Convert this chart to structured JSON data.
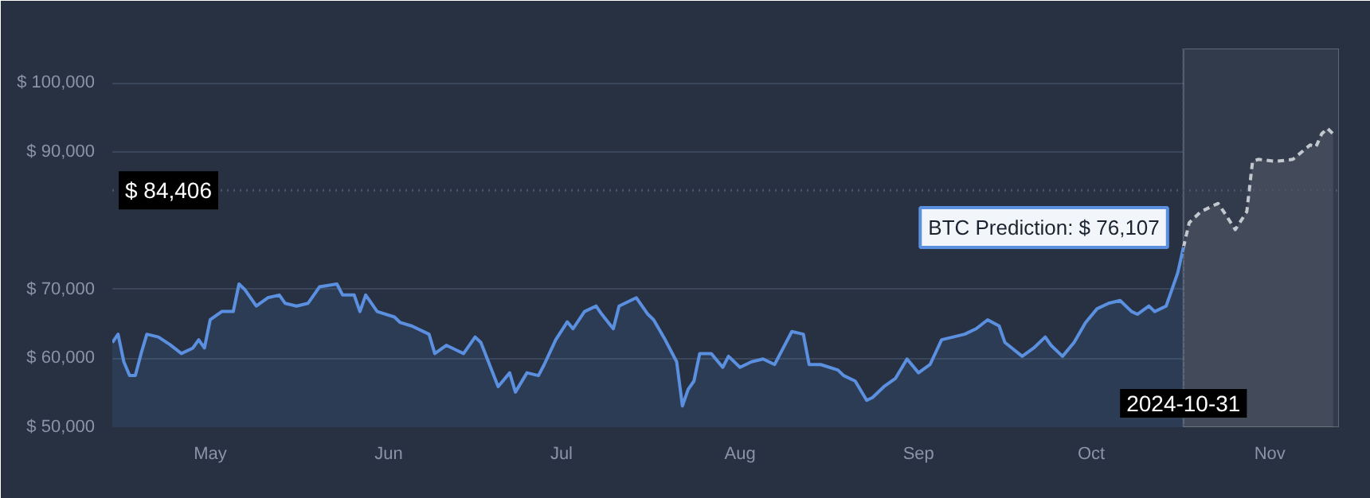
{
  "chart_data": {
    "type": "area",
    "grid": "y",
    "series": [
      {
        "color": "#5b8fe0",
        "x": [
          "2024-04-28",
          "2024-04-29",
          "2024-04-30",
          "2024-05-01",
          "2024-05-02",
          "2024-05-03",
          "2024-05-04",
          "2024-05-06",
          "2024-05-08",
          "2024-05-10",
          "2024-05-12",
          "2024-05-13",
          "2024-05-14",
          "2024-05-15",
          "2024-05-17",
          "2024-05-19",
          "2024-05-20",
          "2024-05-21",
          "2024-05-23",
          "2024-05-25",
          "2024-05-27",
          "2024-05-28",
          "2024-05-30",
          "2024-06-01",
          "2024-06-03",
          "2024-06-06",
          "2024-06-07",
          "2024-06-09",
          "2024-06-10",
          "2024-06-11",
          "2024-06-13",
          "2024-06-16",
          "2024-06-17",
          "2024-06-19",
          "2024-06-22",
          "2024-06-23",
          "2024-06-25",
          "2024-06-27",
          "2024-06-28",
          "2024-06-30",
          "2024-07-01",
          "2024-07-04",
          "2024-07-06",
          "2024-07-07",
          "2024-07-09",
          "2024-07-11",
          "2024-07-12",
          "2024-07-14",
          "2024-07-16",
          "2024-07-17",
          "2024-07-19",
          "2024-07-21",
          "2024-07-22",
          "2024-07-24",
          "2024-07-25",
          "2024-07-27",
          "2024-07-28",
          "2024-07-30",
          "2024-07-31",
          "2024-08-02",
          "2024-08-04",
          "2024-08-05",
          "2024-08-06",
          "2024-08-07",
          "2024-08-08",
          "2024-08-10",
          "2024-08-12",
          "2024-08-13",
          "2024-08-15",
          "2024-08-17",
          "2024-08-19",
          "2024-08-21",
          "2024-08-22",
          "2024-08-24",
          "2024-08-26",
          "2024-08-27",
          "2024-08-29",
          "2024-09-01",
          "2024-09-02",
          "2024-09-04",
          "2024-09-06",
          "2024-09-07",
          "2024-09-09",
          "2024-09-11",
          "2024-09-13",
          "2024-09-15",
          "2024-09-17",
          "2024-09-19",
          "2024-09-21",
          "2024-09-23",
          "2024-09-25",
          "2024-09-27",
          "2024-09-29",
          "2024-09-30",
          "2024-10-03",
          "2024-10-05",
          "2024-10-07",
          "2024-10-08",
          "2024-10-10",
          "2024-10-12",
          "2024-10-14",
          "2024-10-16",
          "2024-10-18",
          "2024-10-20",
          "2024-10-22",
          "2024-10-23",
          "2024-10-25",
          "2024-10-26",
          "2024-10-28",
          "2024-10-29",
          "2024-10-30",
          "2024-10-31"
        ],
        "values": [
          62300,
          63500,
          59500,
          57500,
          57500,
          60700,
          63500,
          63100,
          62000,
          60700,
          61500,
          62700,
          61500,
          65600,
          66800,
          66800,
          70800,
          70000,
          67600,
          68800,
          69200,
          68000,
          67600,
          68000,
          70400,
          70800,
          69200,
          69200,
          66800,
          69200,
          66800,
          66000,
          65200,
          64700,
          63500,
          60700,
          61900,
          61100,
          60700,
          63100,
          62300,
          55900,
          57900,
          55100,
          57900,
          57500,
          59100,
          62700,
          65300,
          64300,
          66800,
          67600,
          66400,
          64300,
          67600,
          68400,
          68800,
          66400,
          65600,
          62700,
          59500,
          53100,
          55500,
          56700,
          60700,
          60700,
          58700,
          60300,
          58700,
          59500,
          59900,
          59100,
          60700,
          63900,
          63500,
          59100,
          59100,
          58300,
          57500,
          56700,
          53900,
          54300,
          55900,
          57100,
          59900,
          57900,
          59100,
          62700,
          63100,
          63500,
          64300,
          65600,
          64700,
          62300,
          60300,
          61500,
          63100,
          61900,
          60300,
          62300,
          65200,
          67200,
          68000,
          68400,
          66800,
          66400,
          67600,
          66800,
          67600,
          70000,
          72400,
          76107
        ]
      },
      {
        "color": "#c3c8cf",
        "line_style": "dashed",
        "x": [
          "2024-10-31",
          "2024-11-01",
          "2024-11-03",
          "2024-11-06",
          "2024-11-07",
          "2024-11-09",
          "2024-11-11",
          "2024-11-12",
          "2024-11-13",
          "2024-11-16",
          "2024-11-19",
          "2024-11-22",
          "2024-11-23",
          "2024-11-24",
          "2024-11-25",
          "2024-11-26"
        ],
        "values": [
          76107,
          79700,
          81300,
          82500,
          81300,
          78700,
          81300,
          88600,
          88900,
          88600,
          88900,
          91000,
          90700,
          92600,
          93400,
          92600
        ]
      }
    ],
    "xlim": [
      "2024-04-28",
      "2024-11-27"
    ],
    "xticks": [
      {
        "value": "2024-05-15",
        "label": "May"
      },
      {
        "value": "2024-06-15",
        "label": "Jun"
      },
      {
        "value": "2024-07-15",
        "label": "Jul"
      },
      {
        "value": "2024-08-15",
        "label": "Aug"
      },
      {
        "value": "2024-09-15",
        "label": "Sep"
      },
      {
        "value": "2024-10-15",
        "label": "Oct"
      },
      {
        "value": "2024-11-15",
        "label": "Nov"
      }
    ],
    "ylim": [
      50000,
      105000
    ],
    "yticks": [
      {
        "value": 50000,
        "label": "$ 50,000"
      },
      {
        "value": 60000,
        "label": "$ 60,000"
      },
      {
        "value": 70000,
        "label": "$ 70,000"
      },
      {
        "value": 90000,
        "label": "$ 90,000"
      },
      {
        "value": 100000,
        "label": "$ 100,000"
      }
    ],
    "ref_lines": [
      {
        "axis": "y",
        "value": 84406,
        "label": "$ 84,406",
        "line_style": "dotted",
        "color": "#4a5466"
      },
      {
        "axis": "x",
        "value": "2024-10-31",
        "label": "2024-10-31",
        "line_style": "dotted",
        "color": "#4a5466"
      }
    ],
    "bands": [
      {
        "axis": "x",
        "from": "2024-10-31",
        "to": "2024-11-27",
        "color": "#313b4b"
      }
    ],
    "annotations": [
      {
        "text": "BTC Prediction: $ 76,107",
        "x": "2024-10-31",
        "y": 76107
      }
    ]
  }
}
